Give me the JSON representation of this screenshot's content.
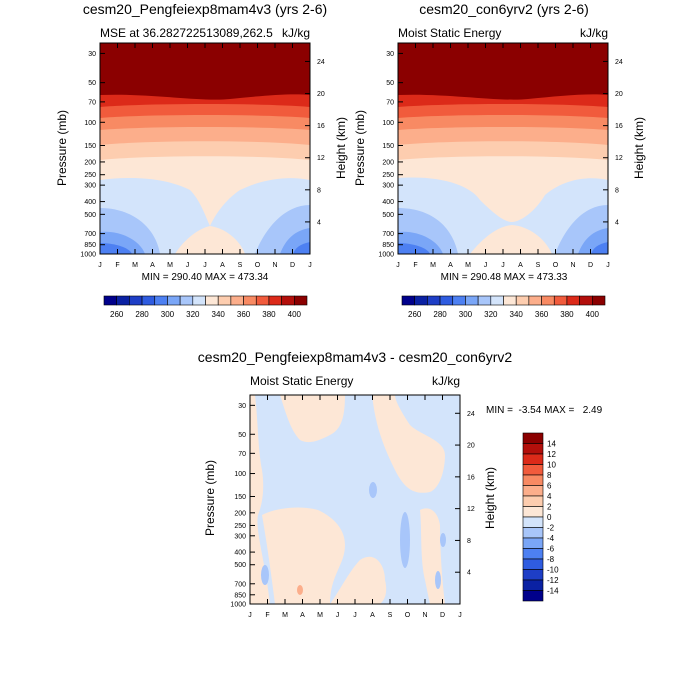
{
  "chart_data": [
    {
      "type": "contour",
      "id": "panel1",
      "title": "cesm20_Pengfeiexp8mam4v3 (yrs 2-6)",
      "subtitle_left": "MSE at 36.282722513089,262.5",
      "subtitle_right": "kJ/kg",
      "ylabel": "Pressure (mb)",
      "y2label": "Height (km)",
      "xlabel": "",
      "x_ticks": [
        "J",
        "F",
        "M",
        "A",
        "M",
        "J",
        "J",
        "A",
        "S",
        "O",
        "N",
        "D",
        "J"
      ],
      "y_ticks": [
        "30",
        "50",
        "70",
        "100",
        "150",
        "200",
        "250",
        "300",
        "400",
        "500",
        "700",
        "850",
        "1000"
      ],
      "y2_ticks": [
        "24",
        "20",
        "16",
        "12",
        "8",
        "4"
      ],
      "min_max_text": "MIN = 290.40 MAX = 473.34",
      "min": 290.4,
      "max": 473.34,
      "colorbar_levels": [
        260,
        270,
        280,
        290,
        300,
        310,
        320,
        330,
        340,
        350,
        360,
        370,
        380,
        390,
        400
      ],
      "colorbar_tick_labels": [
        "260",
        "280",
        "300",
        "320",
        "340",
        "360",
        "380",
        "400"
      ],
      "colors": [
        "#00008b",
        "#0a21a3",
        "#1e3ec6",
        "#2f5ce0",
        "#4d80f2",
        "#7aa6f7",
        "#a8c6fa",
        "#d3e4fb",
        "#fde7d6",
        "#fdcdaf",
        "#fcae8b",
        "#f88a63",
        "#f15b3c",
        "#dc2a19",
        "#b30f0b",
        "#8b0000"
      ]
    },
    {
      "type": "contour",
      "id": "panel2",
      "title": "cesm20_con6yrv2 (yrs 2-6)",
      "subtitle_left": "Moist Static Energy",
      "subtitle_right": "kJ/kg",
      "ylabel": "Pressure (mb)",
      "y2label": "Height (km)",
      "x_ticks": [
        "J",
        "F",
        "M",
        "A",
        "M",
        "J",
        "J",
        "A",
        "S",
        "O",
        "N",
        "D",
        "J"
      ],
      "y_ticks": [
        "30",
        "50",
        "70",
        "100",
        "150",
        "200",
        "250",
        "300",
        "400",
        "500",
        "700",
        "850",
        "1000"
      ],
      "y2_ticks": [
        "24",
        "20",
        "16",
        "12",
        "8",
        "4"
      ],
      "min_max_text": "MIN = 290.48 MAX = 473.33",
      "min": 290.48,
      "max": 473.33,
      "colorbar_levels": [
        260,
        270,
        280,
        290,
        300,
        310,
        320,
        330,
        340,
        350,
        360,
        370,
        380,
        390,
        400
      ],
      "colorbar_tick_labels": [
        "260",
        "280",
        "300",
        "320",
        "340",
        "360",
        "380",
        "400"
      ]
    },
    {
      "type": "contour",
      "id": "panel3",
      "title": "cesm20_Pengfeiexp8mam4v3 - cesm20_con6yrv2",
      "subtitle_left": "Moist Static Energy",
      "subtitle_right": "kJ/kg",
      "ylabel": "Pressure (mb)",
      "y2label": "Height (km)",
      "x_ticks": [
        "J",
        "F",
        "M",
        "A",
        "M",
        "J",
        "J",
        "A",
        "S",
        "O",
        "N",
        "D",
        "J"
      ],
      "y_ticks": [
        "30",
        "50",
        "70",
        "100",
        "150",
        "200",
        "250",
        "300",
        "400",
        "500",
        "700",
        "850",
        "1000"
      ],
      "y2_ticks": [
        "24",
        "20",
        "16",
        "12",
        "8",
        "4"
      ],
      "min_max_text": "MIN =  -3.54 MAX =   2.49",
      "min": -3.54,
      "max": 2.49,
      "colorbar_levels": [
        14,
        12,
        10,
        8,
        6,
        4,
        2,
        0,
        -2,
        -4,
        -6,
        -8,
        -10,
        -12,
        -14
      ],
      "colorbar_tick_labels": [
        "14",
        "12",
        "10",
        "8",
        "6",
        "4",
        "2",
        "0",
        "-2",
        "-4",
        "-6",
        "-8",
        "-10",
        "-12",
        "-14"
      ],
      "colors": [
        "#8b0000",
        "#b30f0b",
        "#dc2a19",
        "#f15b3c",
        "#f88a63",
        "#fcae8b",
        "#fdcdaf",
        "#fde7d6",
        "#d3e4fb",
        "#a8c6fa",
        "#7aa6f7",
        "#4d80f2",
        "#2f5ce0",
        "#1e3ec6",
        "#0a21a3",
        "#00008b"
      ]
    }
  ]
}
